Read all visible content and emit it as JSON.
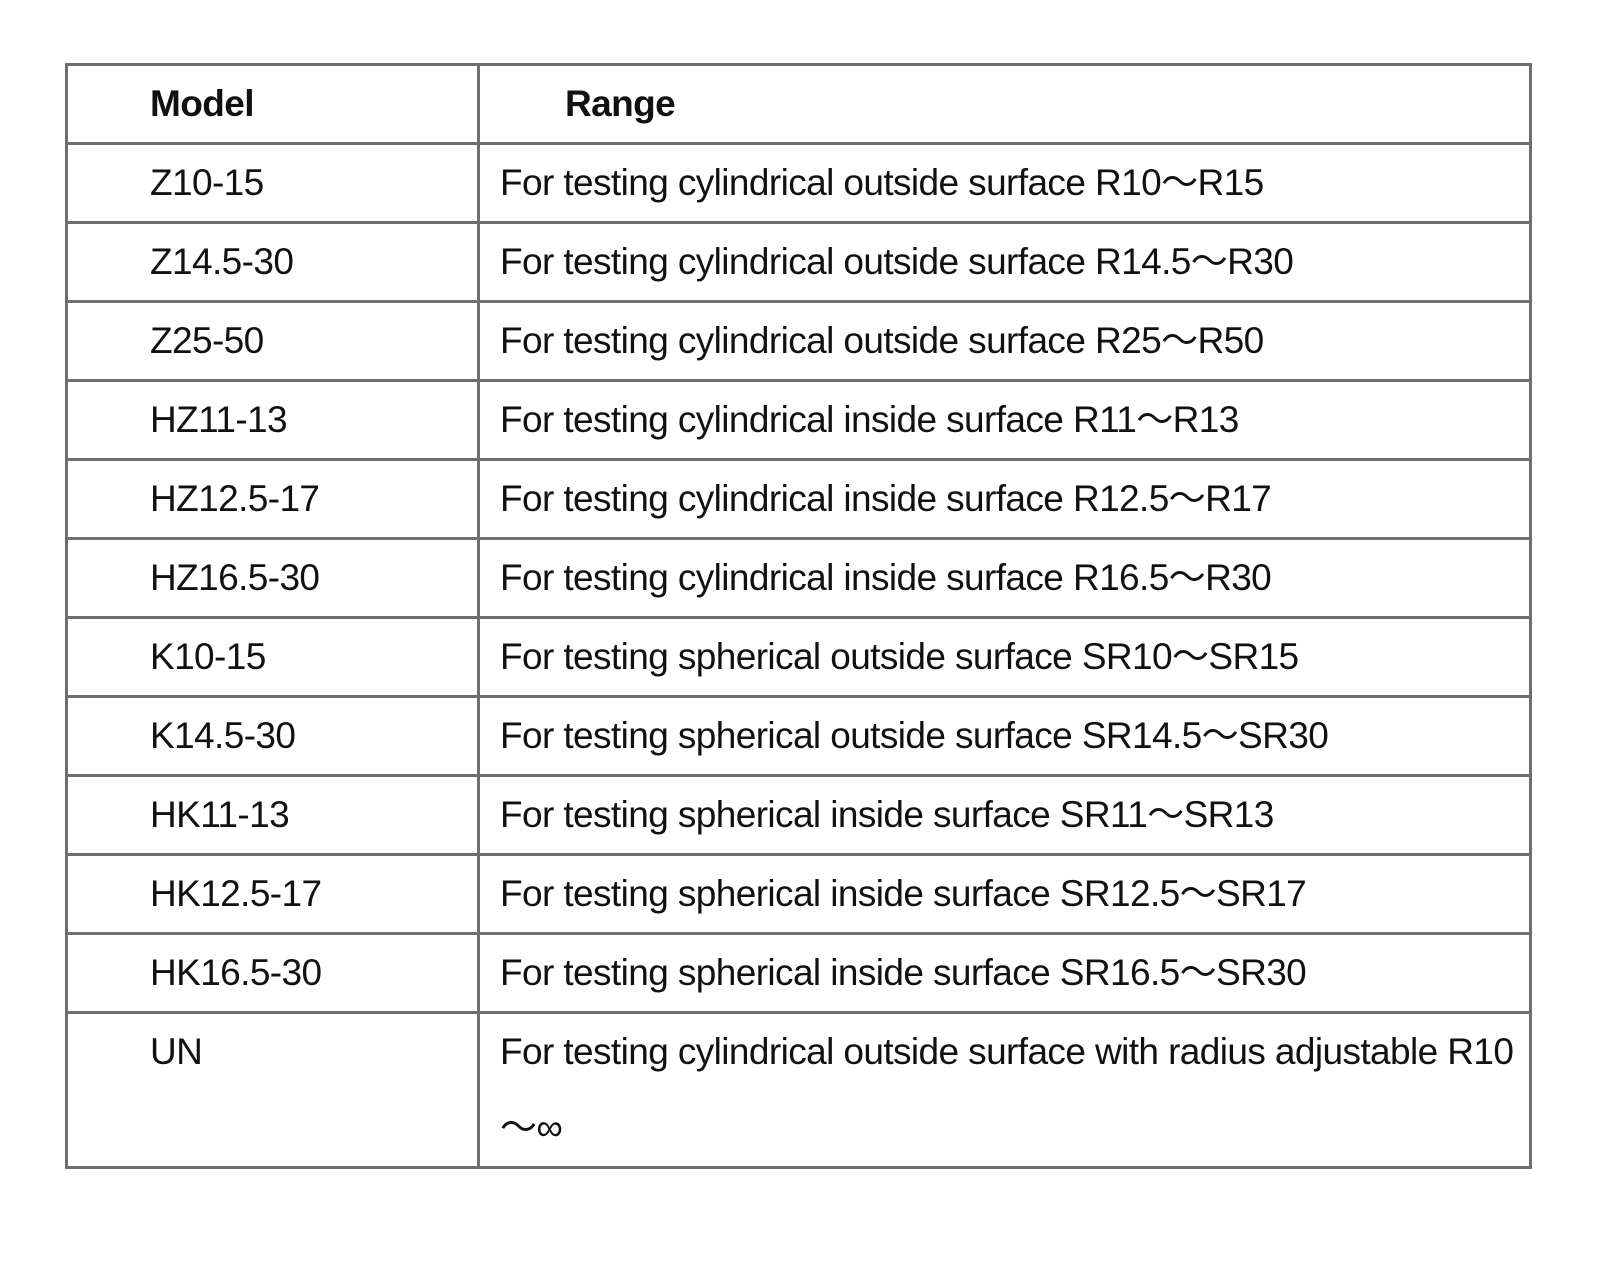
{
  "table": {
    "header": [
      "Model",
      "Range"
    ],
    "rows": [
      [
        "Z10-15",
        "For testing cylindrical outside surface R10～R15"
      ],
      [
        "Z14.5-30",
        "For testing cylindrical outside surface R14.5～R30"
      ],
      [
        "Z25-50",
        "For testing cylindrical outside surface R25～R50"
      ],
      [
        "HZ11-13",
        "For testing cylindrical inside surface R11～R13"
      ],
      [
        "HZ12.5-17",
        "For testing cylindrical inside surface R12.5～R17"
      ],
      [
        "HZ16.5-30",
        "For testing cylindrical inside surface R16.5～R30"
      ],
      [
        "K10-15",
        "For testing spherical outside surface SR10～SR15"
      ],
      [
        "K14.5-30",
        "For testing spherical outside surface SR14.5～SR30"
      ],
      [
        "HK11-13",
        "For testing spherical inside surface SR11～SR13"
      ],
      [
        "HK12.5-17",
        "For testing spherical inside surface SR12.5～SR17"
      ],
      [
        "HK16.5-30",
        "For testing spherical inside surface SR16.5～SR30"
      ],
      [
        "UN",
        "For testing cylindrical outside surface with radius adjustable R10～∞"
      ]
    ]
  }
}
